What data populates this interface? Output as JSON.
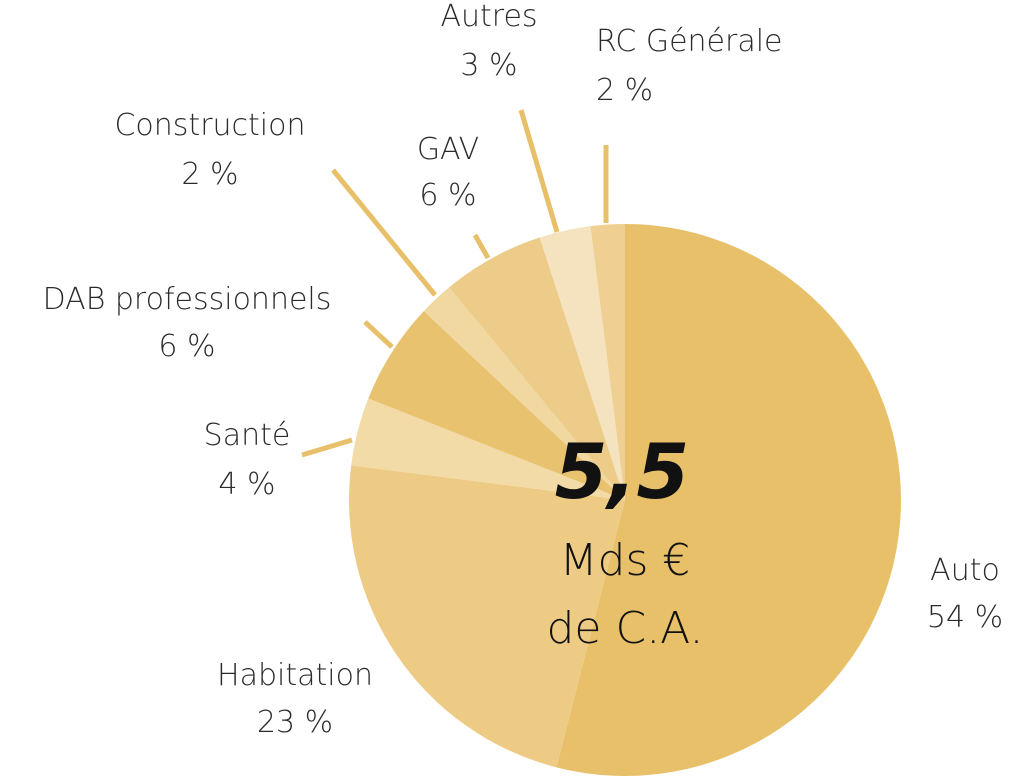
{
  "chart_data": {
    "type": "pie",
    "categories": [
      "Auto",
      "Habitation",
      "Santé",
      "DAB professionnels",
      "Construction",
      "GAV",
      "Autres",
      "RC Générale"
    ],
    "values": [
      54,
      23,
      4,
      6,
      2,
      6,
      3,
      2
    ],
    "value_labels": [
      "54 %",
      "23 %",
      "4 %",
      "6 %",
      "2 %",
      "6 %",
      "3 %",
      "2 %"
    ],
    "colors": [
      "#e8c06a",
      "#eecb85",
      "#f2dba6",
      "#e9c270",
      "#f0d8a0",
      "#edcb88",
      "#f5e3bf",
      "#efcf92"
    ],
    "center_value": "5,5",
    "center_text": [
      "Mds €",
      "de C.A."
    ]
  }
}
